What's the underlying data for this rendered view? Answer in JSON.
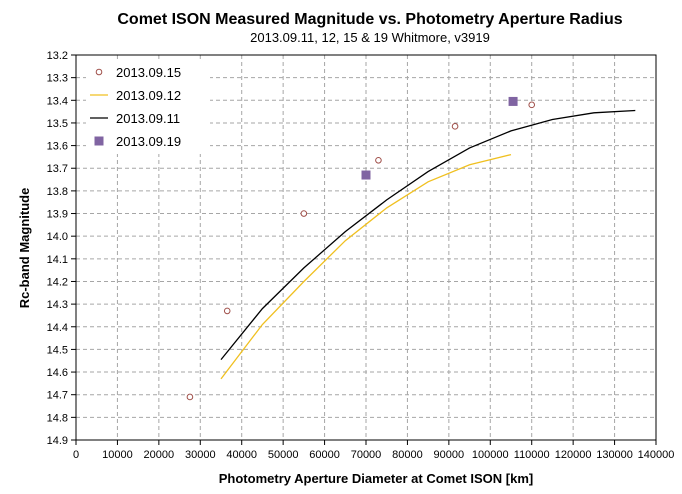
{
  "chart_data": {
    "type": "scatter",
    "title": "Comet ISON Measured Magnitude vs. Photometry Aperture Radius",
    "subtitle": "2013.09.11,  12, 15 & 19 Whitmore, v3919",
    "xlabel": "Photometry Aperture Diameter at Comet ISON [km]",
    "ylabel": "Rc-band Magnitude",
    "xlim": [
      0,
      140000
    ],
    "ylim": [
      13.2,
      14.9
    ],
    "y_inverted": true,
    "x_ticks": [
      "0",
      "10000",
      "20000",
      "30000",
      "40000",
      "50000",
      "60000",
      "70000",
      "80000",
      "90000",
      "100000",
      "110000",
      "120000",
      "130000",
      "140000"
    ],
    "y_ticks": [
      "13.2",
      "13.3",
      "13.4",
      "13.5",
      "13.6",
      "13.7",
      "13.8",
      "13.9",
      "14.0",
      "14.1",
      "14.2",
      "14.3",
      "14.4",
      "14.5",
      "14.6",
      "14.7",
      "14.8",
      "14.9"
    ],
    "grid": true,
    "legend_position": "top-left",
    "series": [
      {
        "name": "2013.09.15",
        "kind": "markers",
        "marker": "open-circle",
        "color": "#a0504a",
        "x": [
          27500,
          36500,
          55000,
          73000,
          91500,
          110000
        ],
        "y": [
          14.71,
          14.33,
          13.9,
          13.665,
          13.515,
          13.42
        ]
      },
      {
        "name": "2013.09.12",
        "kind": "line",
        "color": "#f0c020",
        "x": [
          35000,
          45000,
          55000,
          65000,
          75000,
          85000,
          95000,
          105000
        ],
        "y": [
          14.63,
          14.39,
          14.2,
          14.02,
          13.875,
          13.76,
          13.685,
          13.64
        ]
      },
      {
        "name": "2013.09.11",
        "kind": "line",
        "color": "#000000",
        "x": [
          35000,
          45000,
          55000,
          65000,
          75000,
          85000,
          95000,
          105000,
          115000,
          125000,
          135000
        ],
        "y": [
          14.545,
          14.32,
          14.14,
          13.98,
          13.84,
          13.715,
          13.61,
          13.535,
          13.485,
          13.455,
          13.445
        ]
      },
      {
        "name": "2013.09.19",
        "kind": "markers",
        "marker": "filled-square",
        "color": "#8064a2",
        "x": [
          70000,
          105500
        ],
        "y": [
          13.73,
          13.405
        ]
      }
    ]
  }
}
